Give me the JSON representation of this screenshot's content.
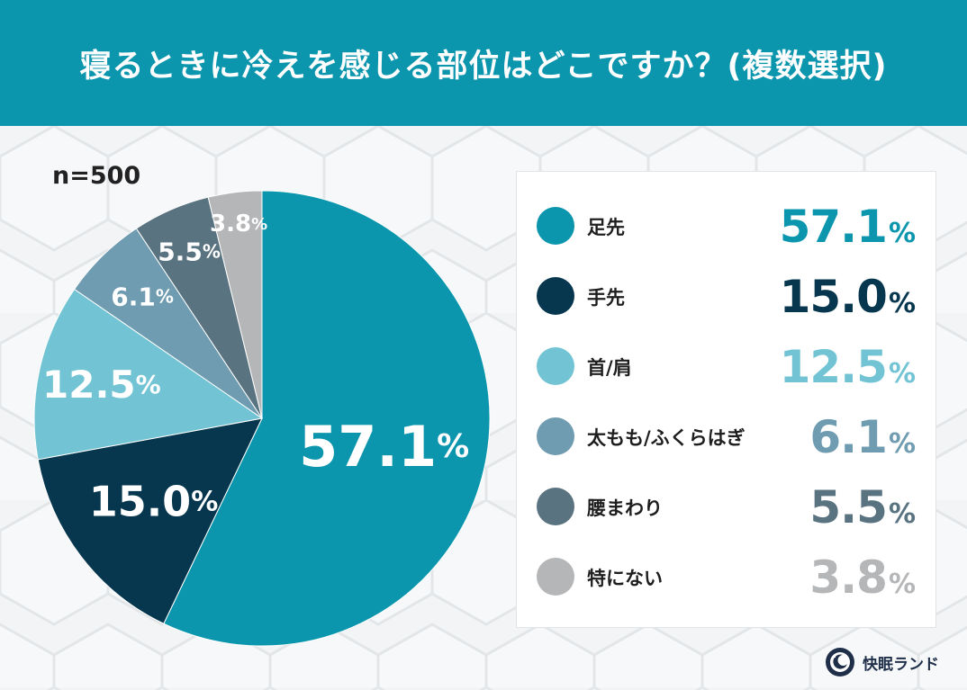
{
  "header": {
    "title": "寝るときに冷えを感じる部位はどこですか？(複数選択)"
  },
  "sample_label": "n=500",
  "brand": {
    "name": "快眠ランド",
    "logo_icon": "sleep-brand-logo-icon"
  },
  "colors": {
    "header_bg": "#0b96ae",
    "panel_bg": "#ffffff",
    "label_text": "#ffffff"
  },
  "chart_data": {
    "type": "pie",
    "title": "寝るときに冷えを感じる部位はどこですか？(複数選択)",
    "categories": [
      "足先",
      "手先",
      "首/肩",
      "太もも/ふくらはぎ",
      "腰まわり",
      "特にない"
    ],
    "values": [
      57.1,
      15.0,
      12.5,
      6.1,
      5.5,
      3.8
    ],
    "value_labels": [
      "57.1",
      "15.0",
      "12.5",
      "6.1",
      "5.5",
      "3.8"
    ],
    "unit": "%",
    "colors": [
      "#0b96ae",
      "#06374f",
      "#72c4d4",
      "#6f9cb0",
      "#5a7380",
      "#b5b6b8"
    ],
    "legend_position": "right",
    "start": "top, clockwise"
  }
}
